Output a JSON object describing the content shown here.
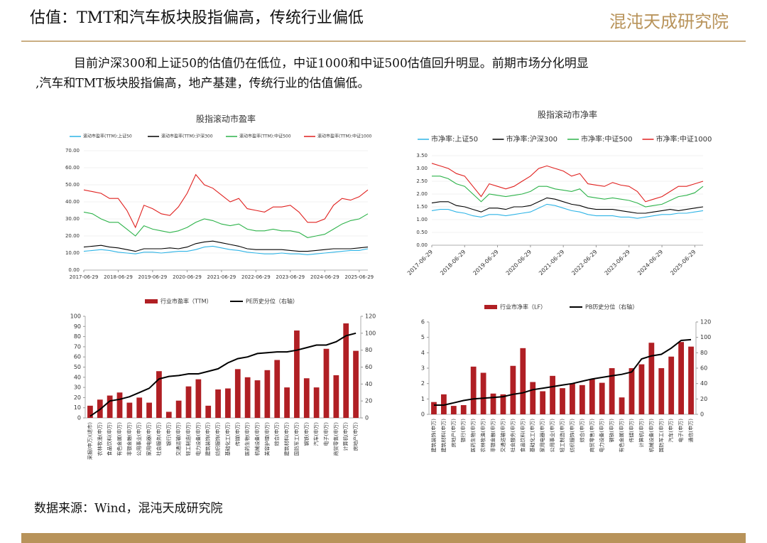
{
  "header": {
    "title": "估值：TMT和汽车板块股指偏高，传统行业偏低",
    "logo": "混沌天成研究院"
  },
  "body": [
    "目前沪深300和上证50的估值仍在低位，中证1000和中证500估值回升明显。前期市场分化明显",
    ",汽车和TMT板块股指偏高，地产基建，传统行业的估值偏低。"
  ],
  "source": "数据来源：Wind，混沌天成研究院",
  "chart_data": [
    {
      "type": "line",
      "title": "股指滚动市盈率",
      "x": [
        "2017-06-29",
        "2017-09-29",
        "2017-12-29",
        "2018-03-29",
        "2018-06-29",
        "2018-09-29",
        "2018-12-29",
        "2019-03-29",
        "2019-06-29",
        "2019-09-29",
        "2019-12-29",
        "2020-03-29",
        "2020-06-29",
        "2020-09-29",
        "2020-12-29",
        "2021-03-29",
        "2021-06-29",
        "2021-09-29",
        "2021-12-29",
        "2022-03-29",
        "2022-06-29",
        "2022-09-29",
        "2022-12-29",
        "2023-03-29",
        "2023-06-29",
        "2023-09-29",
        "2023-12-29",
        "2024-03-29",
        "2024-06-29",
        "2024-09-29",
        "2024-12-29",
        "2025-03-29",
        "2025-06-29",
        "2025-09-29"
      ],
      "xlim": [
        "2017-06-29",
        "2025-09-29"
      ],
      "xticks": [
        "2017-06-29",
        "2018-06-29",
        "2019-06-29",
        "2020-06-29",
        "2021-06-29",
        "2022-06-29",
        "2023-06-29",
        "2024-06-29",
        "2025-06-29"
      ],
      "ylim": [
        0,
        70
      ],
      "yticks": [
        {
          "value": 0,
          "label": "0.00"
        },
        {
          "value": 10,
          "label": "10.00"
        },
        {
          "value": 20,
          "label": "20.00"
        },
        {
          "value": 30,
          "label": "30.00"
        },
        {
          "value": 40,
          "label": "40.00"
        },
        {
          "value": 50,
          "label": "50.00"
        },
        {
          "value": 60,
          "label": "60.00"
        },
        {
          "value": 70,
          "label": "70.00"
        }
      ],
      "series": [
        {
          "name": "滚动市盈率(TTM):上证50",
          "color": "#2eb4e6",
          "values": [
            11,
            11.5,
            12,
            11.5,
            10.5,
            10,
            9.5,
            10.5,
            10.5,
            10,
            10.5,
            11,
            11,
            12,
            13.5,
            14,
            13,
            12,
            11.5,
            10.5,
            10,
            9.5,
            9.5,
            10,
            9.5,
            9.5,
            9,
            9.5,
            10,
            10.5,
            11,
            11.5,
            11.5,
            12.5
          ]
        },
        {
          "name": "滚动市盈率(TTM):沪深300",
          "color": "#000000",
          "values": [
            13.5,
            14,
            14.5,
            13.5,
            13,
            12,
            11,
            12.5,
            12.5,
            12.5,
            13,
            12.5,
            13.5,
            15.5,
            16.5,
            17,
            16,
            15,
            14,
            12.5,
            12,
            12,
            12,
            12,
            11.5,
            11,
            11,
            11.5,
            12,
            12.5,
            12.5,
            12.5,
            13,
            13.5
          ]
        },
        {
          "name": "滚动市盈率(TTM):中证500",
          "color": "#2db34a",
          "values": [
            34,
            33,
            30,
            28,
            28,
            24,
            20,
            26,
            24,
            23,
            22,
            23,
            25,
            28,
            30,
            29,
            27,
            26,
            27,
            24,
            23,
            23,
            24,
            23,
            23,
            22,
            19,
            20,
            21,
            24,
            27,
            29,
            30,
            33
          ]
        },
        {
          "name": "滚动市盈率(TTM):中证1000",
          "color": "#e0211f",
          "values": [
            47,
            46,
            45,
            42,
            42,
            35,
            25,
            38,
            36,
            33,
            32,
            37,
            45,
            56,
            50,
            48,
            44,
            40,
            42,
            36,
            35,
            34,
            37,
            37,
            38,
            34,
            28,
            28,
            30,
            38,
            42,
            41,
            43,
            47
          ]
        }
      ]
    },
    {
      "type": "line",
      "title": "股指滚动市净率",
      "x": [
        "2017-06-29",
        "2017-09-29",
        "2017-12-29",
        "2018-03-29",
        "2018-06-29",
        "2018-09-29",
        "2018-12-29",
        "2019-03-29",
        "2019-06-29",
        "2019-09-29",
        "2019-12-29",
        "2020-03-29",
        "2020-06-29",
        "2020-09-29",
        "2020-12-29",
        "2021-03-29",
        "2021-06-29",
        "2021-09-29",
        "2021-12-29",
        "2022-03-29",
        "2022-06-29",
        "2022-09-29",
        "2022-12-29",
        "2023-03-29",
        "2023-06-29",
        "2023-09-29",
        "2023-12-29",
        "2024-03-29",
        "2024-06-29",
        "2024-09-29",
        "2024-12-29",
        "2025-03-29",
        "2025-06-29",
        "2025-09-29"
      ],
      "xlim": [
        "2017-06-29",
        "2025-09-29"
      ],
      "xticks": [
        "2017-06-29",
        "2018-06-29",
        "2019-06-29",
        "2020-06-29",
        "2021-06-29",
        "2022-06-29",
        "2023-06-29",
        "2024-06-29",
        "2025-06-29"
      ],
      "xtick_rotation": -45,
      "ylim": [
        0,
        3.5
      ],
      "yticks": [
        {
          "value": 0,
          "label": "0.00"
        },
        {
          "value": 0.5,
          "label": "0.50"
        },
        {
          "value": 1,
          "label": "1.00"
        },
        {
          "value": 1.5,
          "label": "1.50"
        },
        {
          "value": 2,
          "label": "2.00"
        },
        {
          "value": 2.5,
          "label": "2.50"
        },
        {
          "value": 3,
          "label": "3.00"
        },
        {
          "value": 3.5,
          "label": "3.50"
        }
      ],
      "series": [
        {
          "name": "市净率:上证50",
          "color": "#2eb4e6",
          "values": [
            1.35,
            1.4,
            1.4,
            1.3,
            1.25,
            1.15,
            1.1,
            1.2,
            1.2,
            1.15,
            1.2,
            1.25,
            1.3,
            1.45,
            1.6,
            1.55,
            1.45,
            1.35,
            1.3,
            1.2,
            1.15,
            1.15,
            1.15,
            1.1,
            1.1,
            1.05,
            1.1,
            1.15,
            1.2,
            1.2,
            1.25,
            1.25,
            1.3,
            1.35
          ]
        },
        {
          "name": "市净率:沪深300",
          "color": "#000000",
          "values": [
            1.65,
            1.7,
            1.7,
            1.55,
            1.5,
            1.4,
            1.3,
            1.45,
            1.45,
            1.4,
            1.5,
            1.5,
            1.55,
            1.7,
            1.85,
            1.8,
            1.7,
            1.6,
            1.55,
            1.45,
            1.4,
            1.4,
            1.4,
            1.35,
            1.3,
            1.25,
            1.25,
            1.3,
            1.35,
            1.4,
            1.35,
            1.4,
            1.45,
            1.5
          ]
        },
        {
          "name": "市净率:中证500",
          "color": "#2db34a",
          "values": [
            2.7,
            2.7,
            2.6,
            2.4,
            2.3,
            2.0,
            1.7,
            2.0,
            1.95,
            1.9,
            1.95,
            2.0,
            2.1,
            2.3,
            2.3,
            2.2,
            2.15,
            2.1,
            2.2,
            1.9,
            1.85,
            1.8,
            1.85,
            1.8,
            1.75,
            1.65,
            1.5,
            1.55,
            1.6,
            1.75,
            1.9,
            1.95,
            2.05,
            2.3
          ]
        },
        {
          "name": "市净率:中证1000",
          "color": "#e0211f",
          "values": [
            3.2,
            3.1,
            3.0,
            2.8,
            2.7,
            2.3,
            1.9,
            2.4,
            2.3,
            2.2,
            2.3,
            2.5,
            2.7,
            3.0,
            3.1,
            3.0,
            2.9,
            2.7,
            2.8,
            2.4,
            2.35,
            2.3,
            2.45,
            2.35,
            2.3,
            2.1,
            1.7,
            1.8,
            1.9,
            2.1,
            2.3,
            2.3,
            2.4,
            2.5
          ]
        }
      ]
    },
    {
      "type": "combo",
      "categories": [
        "采掘(申万)(退市)",
        "农林牧渔(申万)",
        "食品饮料(申万)",
        "有色金属(申万)",
        "非银金融(申万)",
        "公用事业(申万)",
        "家用电器(申万)",
        "社会服务(申万)",
        "银行(申万)",
        "交通运输(申万)",
        "轻工制造(申万)",
        "电力设备(申万)",
        "建筑装饰(申万)",
        "纺织服饰(申万)",
        "基础化工(申万)",
        "传媒(申万)",
        "医药生物(申万)",
        "机械设备(申万)",
        "美容护理(申万)",
        "综合(申万)",
        "建筑材料(申万)",
        "国防军工(申万)",
        "钢铁(申万)",
        "汽车(申万)",
        "电子(申万)",
        "商贸零售(申万)",
        "计算机(申万)",
        "房地产(申万)"
      ],
      "ylim": [
        0,
        100
      ],
      "yticks": [
        0,
        10,
        20,
        30,
        40,
        50,
        60,
        70,
        80,
        90,
        100
      ],
      "y2lim": [
        0,
        120
      ],
      "y2ticks": [
        0,
        20,
        40,
        60,
        80,
        100,
        120
      ],
      "series": [
        {
          "name": "行业市盈率（TTM）",
          "color": "#b01f24",
          "values": [
            12,
            18,
            22,
            25,
            15,
            20,
            15,
            46,
            6,
            17,
            31,
            38,
            12,
            28,
            29,
            48,
            40,
            37,
            47,
            57,
            30,
            86,
            39,
            30,
            68,
            42,
            93,
            66
          ]
        },
        {
          "name": "PE历史分位（右轴）",
          "color": "#000000",
          "axis": "y2",
          "values": [
            2,
            10,
            20,
            22,
            25,
            30,
            35,
            46,
            49,
            50,
            52,
            52,
            55,
            58,
            65,
            70,
            72,
            76,
            77,
            78,
            78,
            80,
            83,
            86,
            86,
            90,
            97,
            100
          ]
        }
      ]
    },
    {
      "type": "combo",
      "categories": [
        "建筑装饰(申万)",
        "建筑材料(申万)",
        "房地产(申万)",
        "银行(申万)",
        "医药生物(申万)",
        "农林牧渔(申万)",
        "非银金融(申万)",
        "交通运输(申万)",
        "社会服务(申万)",
        "食品饮料(申万)",
        "基础化工(申万)",
        "家用电器(申万)",
        "公用事业(申万)",
        "轻工制造(申万)",
        "纺织服饰(申万)",
        "综合(申万)",
        "商贸零售(申万)",
        "电力设备(申万)",
        "钢铁(申万)",
        "有色金属(申万)",
        "传媒(申万)",
        "计算机(申万)",
        "机械设备(申万)",
        "国防军工(申万)",
        "汽车(申万)",
        "电子(申万)",
        "通信(申万)"
      ],
      "ylim": [
        0,
        6
      ],
      "yticks": [
        0,
        1,
        2,
        3,
        4,
        5,
        6
      ],
      "y2lim": [
        0,
        120
      ],
      "y2ticks": [
        0,
        20,
        40,
        60,
        80,
        100,
        120
      ],
      "series": [
        {
          "name": "行业市净率（LF）",
          "color": "#b01f24",
          "values": [
            0.8,
            1.3,
            0.55,
            0.6,
            3.1,
            2.7,
            1.35,
            1.3,
            3.15,
            4.3,
            2.1,
            1.5,
            2.5,
            1.7,
            2.0,
            1.9,
            2.3,
            2.05,
            3.0,
            1.1,
            3.0,
            3.25,
            4.65,
            3.0,
            3.75,
            4.7,
            4.4
          ]
        },
        {
          "name": "PB历史分位（右轴）",
          "color": "#000000",
          "axis": "y2",
          "values": [
            12,
            12,
            15,
            18,
            20,
            21,
            22,
            23,
            26,
            28,
            32,
            34,
            36,
            38,
            40,
            43,
            46,
            48,
            50,
            52,
            55,
            72,
            76,
            78,
            86,
            96,
            97
          ]
        }
      ]
    }
  ]
}
